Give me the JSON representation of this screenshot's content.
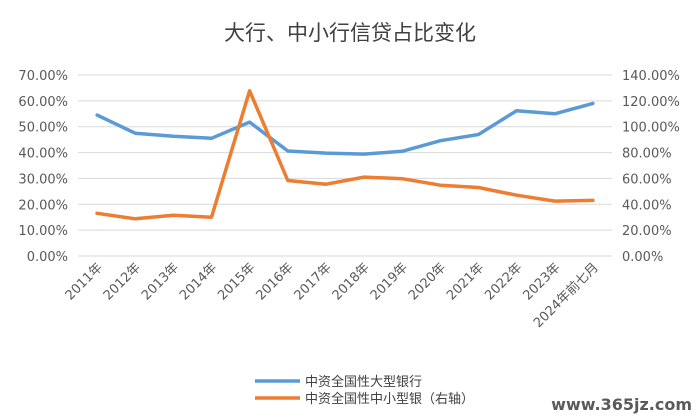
{
  "chart_data": {
    "type": "line",
    "title": "大行、中小行信贷占比变化",
    "categories": [
      "2011年",
      "2012年",
      "2013年",
      "2014年",
      "2015年",
      "2016年",
      "2017年",
      "2018年",
      "2019年",
      "2020年",
      "2021年",
      "2022年",
      "2023年",
      "2024年前七月"
    ],
    "ylim_left": [
      0,
      70
    ],
    "ylim_right": [
      0,
      140
    ],
    "yticks_left": [
      "0.00%",
      "10.00%",
      "20.00%",
      "30.00%",
      "40.00%",
      "50.00%",
      "60.00%",
      "70.00%"
    ],
    "yticks_right": [
      "0.00%",
      "20.00%",
      "40.00%",
      "60.00%",
      "80.00%",
      "100.00%",
      "120.00%",
      "140.00%"
    ],
    "grid": true,
    "legend_position": "bottom",
    "series": [
      {
        "name": "中资全国性大型银行",
        "axis": "left",
        "color": "#5b9bd5",
        "values": [
          54.5,
          47.5,
          46.3,
          45.5,
          51.8,
          40.6,
          39.8,
          39.4,
          40.5,
          44.6,
          47.0,
          56.2,
          55.0,
          59.0
        ]
      },
      {
        "name": "中资全国性中小型银（右轴）",
        "axis": "right",
        "color": "#ed7d31",
        "values": [
          33.0,
          28.8,
          31.5,
          30.0,
          127.8,
          58.4,
          55.5,
          61.0,
          59.8,
          54.8,
          53.0,
          47.0,
          42.5,
          43.0
        ]
      }
    ]
  },
  "watermark": "www.365jz.com"
}
